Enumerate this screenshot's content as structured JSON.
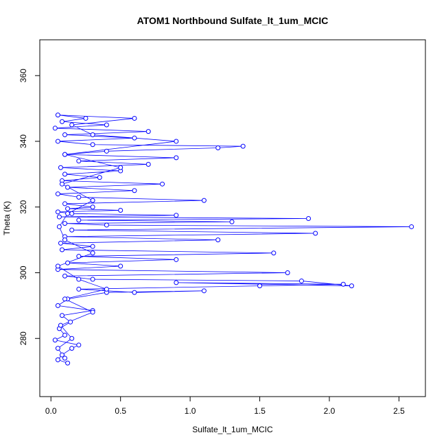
{
  "chart_data": {
    "type": "line-points",
    "title": "ATOM1 Northbound Sulfate_lt_1um_MCIC",
    "x_label": "Sulfate_lt_1um_MCIC",
    "y_label": "Theta (K)",
    "color": "#0000ff",
    "xlim": [
      -0.08,
      2.69
    ],
    "ylim": [
      262.3,
      370.9
    ],
    "xticks": [
      {
        "value": 0,
        "label": "0.0"
      },
      0.5,
      {
        "value": 1,
        "label": "1.0"
      },
      1.5,
      {
        "value": 2,
        "label": "2.0"
      },
      2.5
    ],
    "yticks": [
      280,
      300,
      320,
      340,
      360
    ],
    "x": [
      0.12,
      0.05,
      0.08,
      0.15,
      0.2,
      0.03,
      0.1,
      0.06,
      0.14,
      0.08,
      0.3,
      0.05,
      0.12,
      0.4,
      1.1,
      0.6,
      0.2,
      1.5,
      2.1,
      0.9,
      2.16,
      1.8,
      0.3,
      0.1,
      1.7,
      0.05,
      0.5,
      0.12,
      0.9,
      0.2,
      1.6,
      0.08,
      0.3,
      0.07,
      1.2,
      0.1,
      1.9,
      0.15,
      2.59,
      0.4,
      0.1,
      1.3,
      0.2,
      1.85,
      0.06,
      0.9,
      0.15,
      0.05,
      0.5,
      0.12,
      0.3,
      0.1,
      1.1,
      0.2,
      0.05,
      0.6,
      0.12,
      0.8,
      0.08,
      0.35,
      0.1,
      0.5,
      0.07,
      0.7,
      0.2,
      0.9,
      0.1,
      0.4,
      1.2,
      1.38,
      0.3,
      0.05,
      0.6,
      0.1,
      0.7,
      0.03,
      0.4,
      0.08,
      0.25,
      0.05,
      0.6,
      0.15,
      0.3,
      0.9,
      0.1,
      0.5,
      0.08,
      0.3,
      0.12,
      0.06,
      0.1,
      0.3,
      0.05,
      0.2,
      0.4,
      0.1,
      0.3,
      0.07,
      0.15,
      0.05,
      0.1
    ],
    "values": [
      272.5,
      273.5,
      275,
      277,
      278,
      279.5,
      281,
      283,
      285,
      287,
      288.5,
      290,
      292,
      294,
      294.5,
      294,
      295,
      296,
      296.5,
      297,
      296,
      297.5,
      298,
      299,
      300,
      301,
      302,
      303,
      304,
      305,
      306,
      307,
      308,
      309,
      310,
      311,
      312,
      313,
      314,
      314.5,
      315,
      315.5,
      316,
      316.5,
      317,
      317.5,
      318,
      318.5,
      319,
      319.5,
      320,
      321,
      322,
      323,
      324,
      325,
      326,
      327,
      328,
      329,
      330,
      331,
      332,
      333,
      334,
      335,
      336,
      337,
      338,
      338.5,
      339,
      340,
      341,
      342,
      343,
      344,
      345,
      346,
      347,
      348,
      347,
      345,
      342,
      340,
      336,
      332,
      327,
      322,
      318,
      314,
      310,
      306,
      302,
      298,
      295,
      292,
      288,
      284,
      280,
      277,
      274
    ]
  }
}
